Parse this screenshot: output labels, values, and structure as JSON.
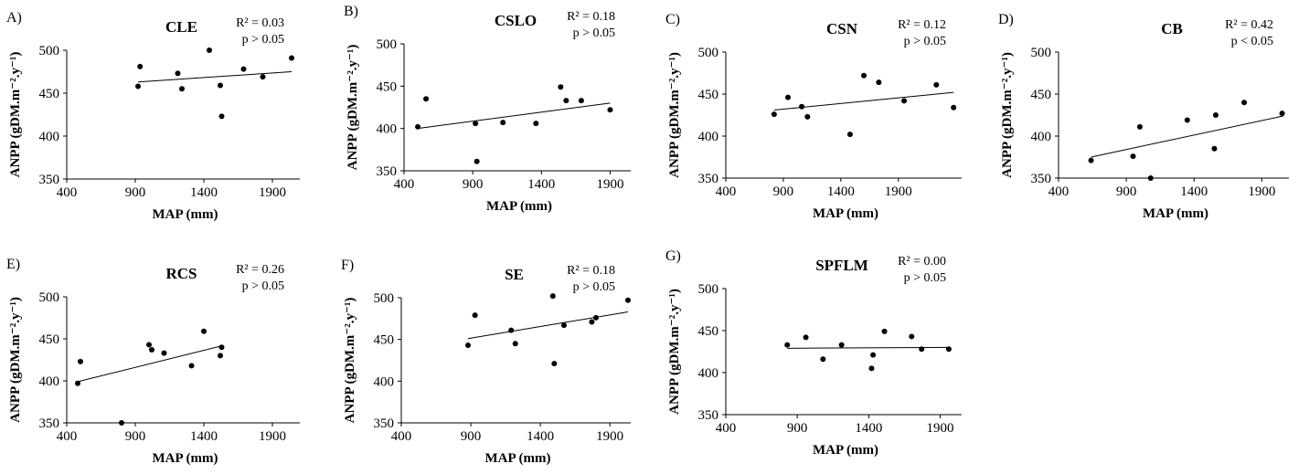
{
  "figure": {
    "background": "#ffffff",
    "point_color": "#000000",
    "line_color": "#000000",
    "axis_color": "#000000"
  },
  "chart_data": [
    {
      "type": "scatter",
      "panel_label": "A)",
      "title": "CLE",
      "r2": "R² = 0.03",
      "p": "p > 0.05",
      "xlabel": "MAP (mm)",
      "ylabel": "ANPP (gDM.m⁻².y⁻¹)",
      "xlim": [
        400,
        2100
      ],
      "ylim": [
        350,
        500
      ],
      "xticks": [
        400,
        900,
        1400,
        1900
      ],
      "yticks": [
        350,
        400,
        450,
        500
      ],
      "x": [
        920,
        935,
        1210,
        1240,
        1440,
        1520,
        1530,
        1690,
        1830,
        2040
      ],
      "y": [
        458,
        481,
        473,
        455,
        500,
        459,
        423,
        478,
        469,
        491
      ],
      "trend": [
        [
          920,
          463
        ],
        [
          2040,
          475
        ]
      ]
    },
    {
      "type": "scatter",
      "panel_label": "B)",
      "title": "CSLO",
      "r2": "R² = 0.18",
      "p": "p > 0.05",
      "xlabel": "MAP (mm)",
      "ylabel": "ANPP (gDM.m⁻².y⁻¹)",
      "xlim": [
        400,
        2050
      ],
      "ylim": [
        350,
        500
      ],
      "xticks": [
        400,
        900,
        1400,
        1900
      ],
      "yticks": [
        350,
        400,
        450,
        500
      ],
      "x": [
        500,
        560,
        920,
        930,
        1120,
        1360,
        1540,
        1580,
        1690,
        1900
      ],
      "y": [
        402,
        435,
        406,
        361,
        407,
        406,
        449,
        433,
        433,
        422
      ],
      "trend": [
        [
          500,
          400
        ],
        [
          1900,
          430
        ]
      ]
    },
    {
      "type": "scatter",
      "panel_label": "C)",
      "title": "CSN",
      "r2": "R² = 0.12",
      "p": "p > 0.05",
      "xlabel": "MAP (mm)",
      "ylabel": "ANPP (gDM.m⁻².y⁻¹)",
      "xlim": [
        400,
        2450
      ],
      "ylim": [
        350,
        500
      ],
      "xticks": [
        400,
        900,
        1400,
        1900
      ],
      "yticks": [
        350,
        400,
        450,
        500
      ],
      "x": [
        820,
        940,
        1060,
        1110,
        1480,
        1600,
        1730,
        1950,
        2230,
        2380
      ],
      "y": [
        426,
        446,
        435,
        423,
        402,
        472,
        464,
        442,
        461,
        434
      ],
      "trend": [
        [
          820,
          431
        ],
        [
          2380,
          452
        ]
      ]
    },
    {
      "type": "scatter",
      "panel_label": "D)",
      "title": "CB",
      "r2": "R² = 0.42",
      "p": "p < 0.05",
      "xlabel": "MAP (mm)",
      "ylabel": "ANPP (gDM.m⁻².y⁻¹)",
      "xlim": [
        400,
        2100
      ],
      "ylim": [
        350,
        500
      ],
      "xticks": [
        400,
        900,
        1400,
        1900
      ],
      "yticks": [
        350,
        400,
        450,
        500
      ],
      "x": [
        640,
        950,
        1000,
        1080,
        1350,
        1550,
        1560,
        1770,
        2050
      ],
      "y": [
        371,
        376,
        411,
        350,
        419,
        385,
        425,
        440,
        427
      ],
      "trend": [
        [
          640,
          375
        ],
        [
          2060,
          424
        ]
      ]
    },
    {
      "type": "scatter",
      "panel_label": "E)",
      "title": "RCS",
      "r2": "R² = 0.26",
      "p": "p > 0.05",
      "xlabel": "MAP (mm)",
      "ylabel": "ANPP (gDM.m⁻².y⁻¹)",
      "xlim": [
        400,
        2100
      ],
      "ylim": [
        350,
        500
      ],
      "xticks": [
        400,
        900,
        1400,
        1900
      ],
      "yticks": [
        350,
        400,
        450,
        500
      ],
      "x": [
        480,
        500,
        800,
        1000,
        1020,
        1110,
        1310,
        1400,
        1520,
        1530
      ],
      "y": [
        397,
        423,
        350,
        443,
        437,
        433,
        418,
        459,
        430,
        440
      ],
      "trend": [
        [
          480,
          399
        ],
        [
          1540,
          442
        ]
      ]
    },
    {
      "type": "scatter",
      "panel_label": "F)",
      "title": "SE",
      "r2": "R² = 0.18",
      "p": "p > 0.05",
      "xlabel": "MAP (mm)",
      "ylabel": "ANPP (gDM.m⁻².y⁻¹)",
      "xlim": [
        400,
        2050
      ],
      "ylim": [
        350,
        500
      ],
      "xticks": [
        400,
        900,
        1400,
        1900
      ],
      "yticks": [
        350,
        400,
        450,
        500
      ],
      "x": [
        880,
        930,
        1190,
        1220,
        1490,
        1500,
        1570,
        1770,
        1800,
        2030
      ],
      "y": [
        443,
        479,
        461,
        445,
        502,
        421,
        467,
        471,
        476,
        497
      ],
      "trend": [
        [
          880,
          451
        ],
        [
          2030,
          483
        ]
      ]
    },
    {
      "type": "scatter",
      "panel_label": "G)",
      "title": "SPFLM",
      "r2": "R² = 0.00",
      "p": "p > 0.05",
      "xlabel": "MAP (mm)",
      "ylabel": "ANPP (gDM.m⁻².y⁻¹)",
      "xlim": [
        400,
        2050
      ],
      "ylim": [
        350,
        500
      ],
      "xticks": [
        400,
        900,
        1400,
        1900
      ],
      "yticks": [
        350,
        400,
        450,
        500
      ],
      "x": [
        830,
        960,
        1080,
        1210,
        1420,
        1430,
        1510,
        1700,
        1770,
        1960
      ],
      "y": [
        433,
        442,
        416,
        433,
        405,
        421,
        449,
        443,
        428,
        428
      ],
      "trend": [
        [
          830,
          429
        ],
        [
          1960,
          430
        ]
      ]
    }
  ]
}
